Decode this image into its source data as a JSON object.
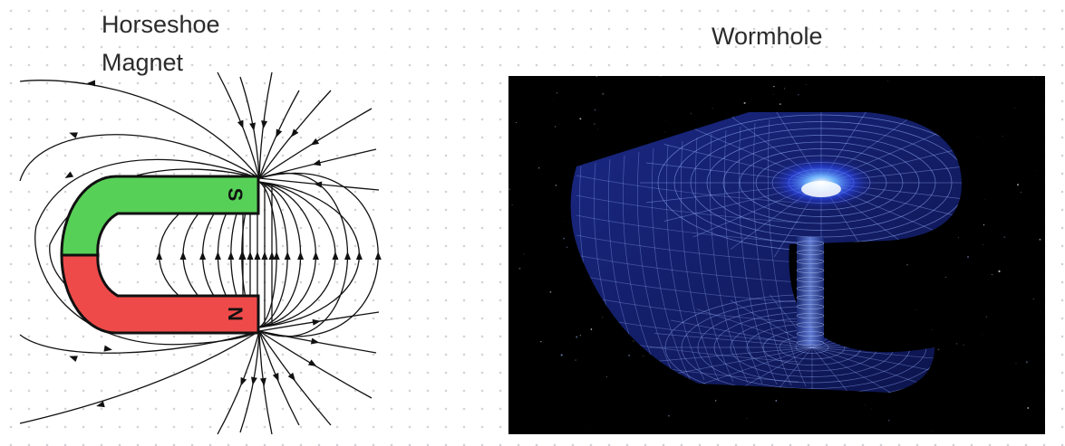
{
  "canvas": {
    "background": "#ffffff",
    "dot_color": "#d2d2d8"
  },
  "magnet_diagram": {
    "title": "Horseshoe\nMagnet",
    "south_pole_label": "S",
    "north_pole_label": "N",
    "south_color": "#57d057",
    "north_color": "#ef4a4a",
    "field_line_color": "#111111"
  },
  "wormhole_image": {
    "title": "Wormhole",
    "background": "#000000",
    "grid_color": "#9bb4ff",
    "glow_color": "#2f6bff"
  }
}
